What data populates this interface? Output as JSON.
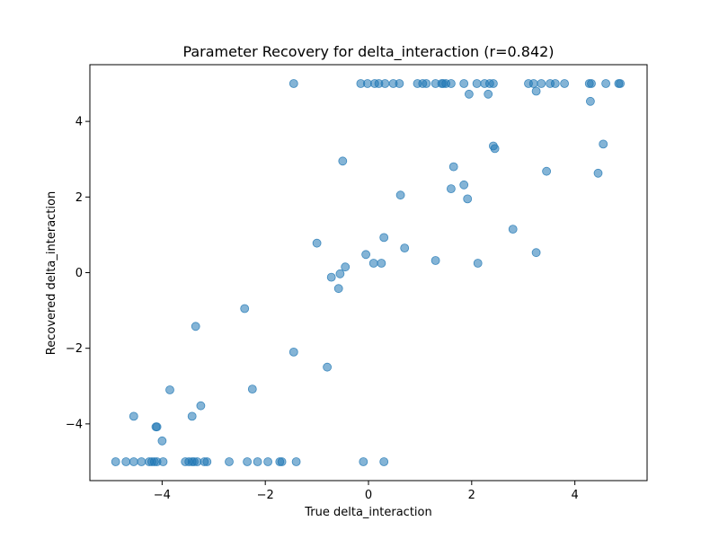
{
  "chart_data": {
    "type": "scatter",
    "title": "Parameter Recovery for delta_interaction (r=0.842)",
    "xlabel": "True delta_interaction",
    "ylabel": "Recovered delta_interaction",
    "xlim": [
      -5.4,
      5.4
    ],
    "ylim": [
      -5.5,
      5.5
    ],
    "xticks": [
      -4,
      -2,
      0,
      2,
      4
    ],
    "yticks": [
      -4,
      -2,
      0,
      2,
      4
    ],
    "xtick_labels": [
      "−4",
      "−2",
      "0",
      "2",
      "4"
    ],
    "ytick_labels": [
      "−4",
      "−2",
      "0",
      "2",
      "4"
    ],
    "grid": false,
    "marker_color": "#1f77b4",
    "points": [
      [
        -4.9,
        -5
      ],
      [
        -4.7,
        -5
      ],
      [
        -4.55,
        -5
      ],
      [
        -4.4,
        -5
      ],
      [
        -4.25,
        -5
      ],
      [
        -4.2,
        -5
      ],
      [
        -4.15,
        -5
      ],
      [
        -4.1,
        -5
      ],
      [
        -3.98,
        -5
      ],
      [
        -3.55,
        -5
      ],
      [
        -3.48,
        -5
      ],
      [
        -3.42,
        -5
      ],
      [
        -3.38,
        -5
      ],
      [
        -3.32,
        -5
      ],
      [
        -3.18,
        -5
      ],
      [
        -3.13,
        -5
      ],
      [
        -2.7,
        -5
      ],
      [
        -2.35,
        -5
      ],
      [
        -2.15,
        -5
      ],
      [
        -1.95,
        -5
      ],
      [
        -1.72,
        -5
      ],
      [
        -1.68,
        -5
      ],
      [
        -1.4,
        -5
      ],
      [
        -0.1,
        -5
      ],
      [
        0.3,
        -5
      ],
      [
        -4.55,
        -3.8
      ],
      [
        -4.12,
        -4.08
      ],
      [
        -4.1,
        -4.08
      ],
      [
        -4.0,
        -4.45
      ],
      [
        -3.85,
        -3.1
      ],
      [
        -3.42,
        -3.8
      ],
      [
        -3.35,
        -1.42
      ],
      [
        -3.25,
        -3.52
      ],
      [
        -2.4,
        -0.95
      ],
      [
        -2.25,
        -3.08
      ],
      [
        -1.45,
        -2.1
      ],
      [
        -0.8,
        -2.5
      ],
      [
        -1.0,
        0.78
      ],
      [
        -0.72,
        -0.12
      ],
      [
        -0.58,
        -0.42
      ],
      [
        -0.55,
        -0.03
      ],
      [
        -0.5,
        2.95
      ],
      [
        -0.45,
        0.15
      ],
      [
        -0.05,
        0.48
      ],
      [
        0.1,
        0.25
      ],
      [
        0.25,
        0.25
      ],
      [
        0.3,
        0.93
      ],
      [
        0.62,
        2.05
      ],
      [
        0.7,
        0.65
      ],
      [
        1.3,
        0.32
      ],
      [
        1.6,
        2.22
      ],
      [
        1.65,
        2.8
      ],
      [
        1.85,
        2.32
      ],
      [
        1.92,
        1.95
      ],
      [
        1.95,
        4.72
      ],
      [
        2.12,
        0.25
      ],
      [
        2.32,
        4.72
      ],
      [
        2.42,
        3.35
      ],
      [
        2.45,
        3.28
      ],
      [
        2.8,
        1.15
      ],
      [
        3.25,
        4.8
      ],
      [
        3.25,
        0.53
      ],
      [
        3.45,
        2.68
      ],
      [
        4.3,
        4.53
      ],
      [
        4.45,
        2.63
      ],
      [
        4.55,
        3.4
      ],
      [
        -1.45,
        5
      ],
      [
        -0.15,
        5
      ],
      [
        -0.02,
        5
      ],
      [
        0.12,
        5
      ],
      [
        0.2,
        5
      ],
      [
        0.32,
        5
      ],
      [
        0.48,
        5
      ],
      [
        0.6,
        5
      ],
      [
        0.95,
        5
      ],
      [
        1.05,
        5
      ],
      [
        1.12,
        5
      ],
      [
        1.3,
        5
      ],
      [
        1.42,
        5
      ],
      [
        1.45,
        5
      ],
      [
        1.5,
        5
      ],
      [
        1.6,
        5
      ],
      [
        1.85,
        5
      ],
      [
        2.1,
        5
      ],
      [
        2.25,
        5
      ],
      [
        2.35,
        5
      ],
      [
        2.42,
        5
      ],
      [
        3.1,
        5
      ],
      [
        3.2,
        5
      ],
      [
        3.35,
        5
      ],
      [
        3.52,
        5
      ],
      [
        3.62,
        5
      ],
      [
        3.8,
        5
      ],
      [
        4.28,
        5
      ],
      [
        4.32,
        5
      ],
      [
        4.6,
        5
      ],
      [
        4.85,
        5
      ],
      [
        4.88,
        5
      ]
    ]
  }
}
